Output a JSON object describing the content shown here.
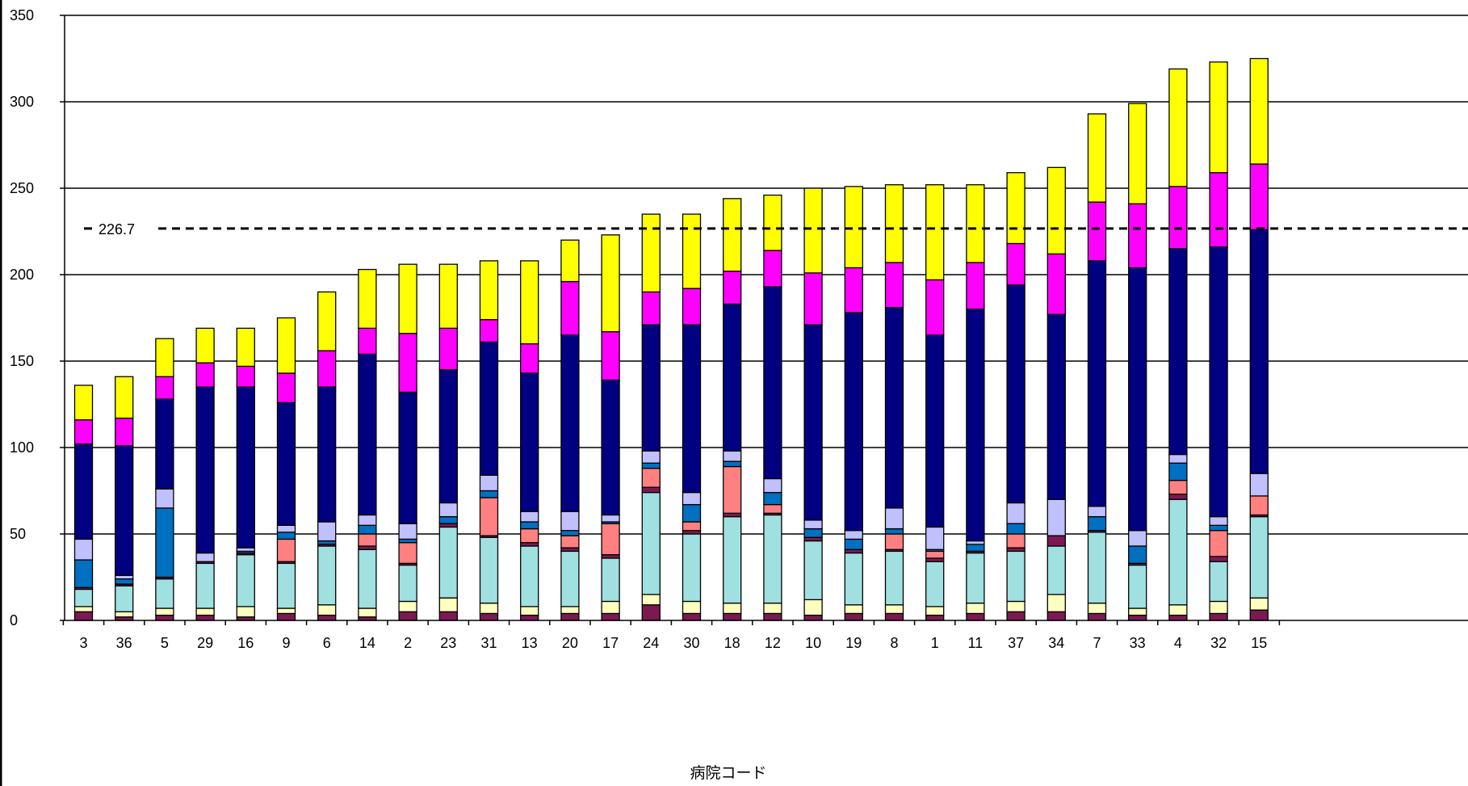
{
  "chart_data": {
    "type": "bar",
    "stacked": true,
    "xlabel": "病院コード",
    "ylabel": "",
    "ylim": [
      0,
      350
    ],
    "yticks": [
      0,
      50,
      100,
      150,
      200,
      250,
      300,
      350
    ],
    "grid": true,
    "reference_line": {
      "value": 226.7,
      "label": "226.7",
      "style": "dashed"
    },
    "categories": [
      "3",
      "36",
      "5",
      "29",
      "16",
      "9",
      "6",
      "14",
      "2",
      "23",
      "31",
      "13",
      "20",
      "17",
      "24",
      "30",
      "18",
      "12",
      "10",
      "19",
      "8",
      "1",
      "11",
      "37",
      "34",
      "7",
      "33",
      "4",
      "32",
      "15"
    ],
    "series": [
      {
        "color": "#7b1a52",
        "values": [
          5,
          2,
          3,
          3,
          2,
          4,
          3,
          2,
          5,
          5,
          4,
          3,
          4,
          4,
          9,
          4,
          4,
          4,
          3,
          4,
          4,
          3,
          4,
          5,
          5,
          4,
          3,
          3,
          4,
          6
        ]
      },
      {
        "color": "#ffffc0",
        "values": [
          3,
          3,
          4,
          4,
          6,
          3,
          6,
          5,
          6,
          8,
          6,
          5,
          4,
          7,
          6,
          7,
          6,
          6,
          9,
          5,
          5,
          5,
          6,
          6,
          10,
          6,
          4,
          6,
          7,
          7
        ]
      },
      {
        "color": "#a0e0e0",
        "values": [
          10,
          15,
          17,
          26,
          30,
          26,
          34,
          34,
          21,
          41,
          38,
          35,
          32,
          25,
          59,
          39,
          50,
          51,
          34,
          30,
          31,
          26,
          29,
          29,
          28,
          41,
          25,
          61,
          23,
          47
        ]
      },
      {
        "color": "#7b1a52",
        "values": [
          1,
          1,
          1,
          1,
          1,
          1,
          1,
          2,
          1,
          2,
          1,
          2,
          2,
          2,
          3,
          2,
          2,
          1,
          2,
          2,
          1,
          2,
          1,
          2,
          6,
          1,
          1,
          3,
          3,
          1
        ]
      },
      {
        "color": "#ff8080",
        "values": [
          0,
          0,
          0,
          0,
          0,
          13,
          0,
          7,
          12,
          0,
          22,
          8,
          7,
          18,
          11,
          5,
          27,
          5,
          0,
          0,
          9,
          4,
          0,
          8,
          0,
          0,
          0,
          8,
          15,
          11
        ]
      },
      {
        "color": "#0070c0",
        "values": [
          16,
          3,
          40,
          0,
          1,
          4,
          2,
          5,
          2,
          4,
          4,
          4,
          3,
          1,
          3,
          10,
          3,
          7,
          5,
          6,
          3,
          1,
          4,
          6,
          0,
          8,
          10,
          10,
          3,
          0
        ]
      },
      {
        "color": "#c0c0ff",
        "values": [
          12,
          2,
          11,
          5,
          2,
          4,
          11,
          6,
          9,
          8,
          9,
          6,
          11,
          4,
          7,
          7,
          6,
          8,
          5,
          5,
          12,
          13,
          2,
          12,
          21,
          6,
          9,
          5,
          5,
          13
        ]
      },
      {
        "color": "#000080",
        "values": [
          55,
          75,
          52,
          96,
          93,
          71,
          78,
          93,
          76,
          77,
          77,
          80,
          102,
          78,
          73,
          97,
          85,
          111,
          113,
          126,
          116,
          111,
          134,
          126,
          107,
          142,
          152,
          119,
          156,
          141
        ]
      },
      {
        "color": "#ff00ff",
        "values": [
          14,
          16,
          13,
          14,
          12,
          17,
          21,
          15,
          34,
          24,
          13,
          17,
          31,
          28,
          19,
          21,
          19,
          21,
          30,
          26,
          26,
          32,
          27,
          24,
          35,
          34,
          37,
          36,
          43,
          38
        ]
      },
      {
        "color": "#ffff00",
        "values": [
          20,
          24,
          22,
          20,
          22,
          32,
          34,
          34,
          40,
          37,
          34,
          48,
          24,
          56,
          45,
          43,
          42,
          32,
          49,
          47,
          45,
          55,
          45,
          41,
          50,
          51,
          58,
          68,
          64,
          61
        ]
      }
    ]
  }
}
